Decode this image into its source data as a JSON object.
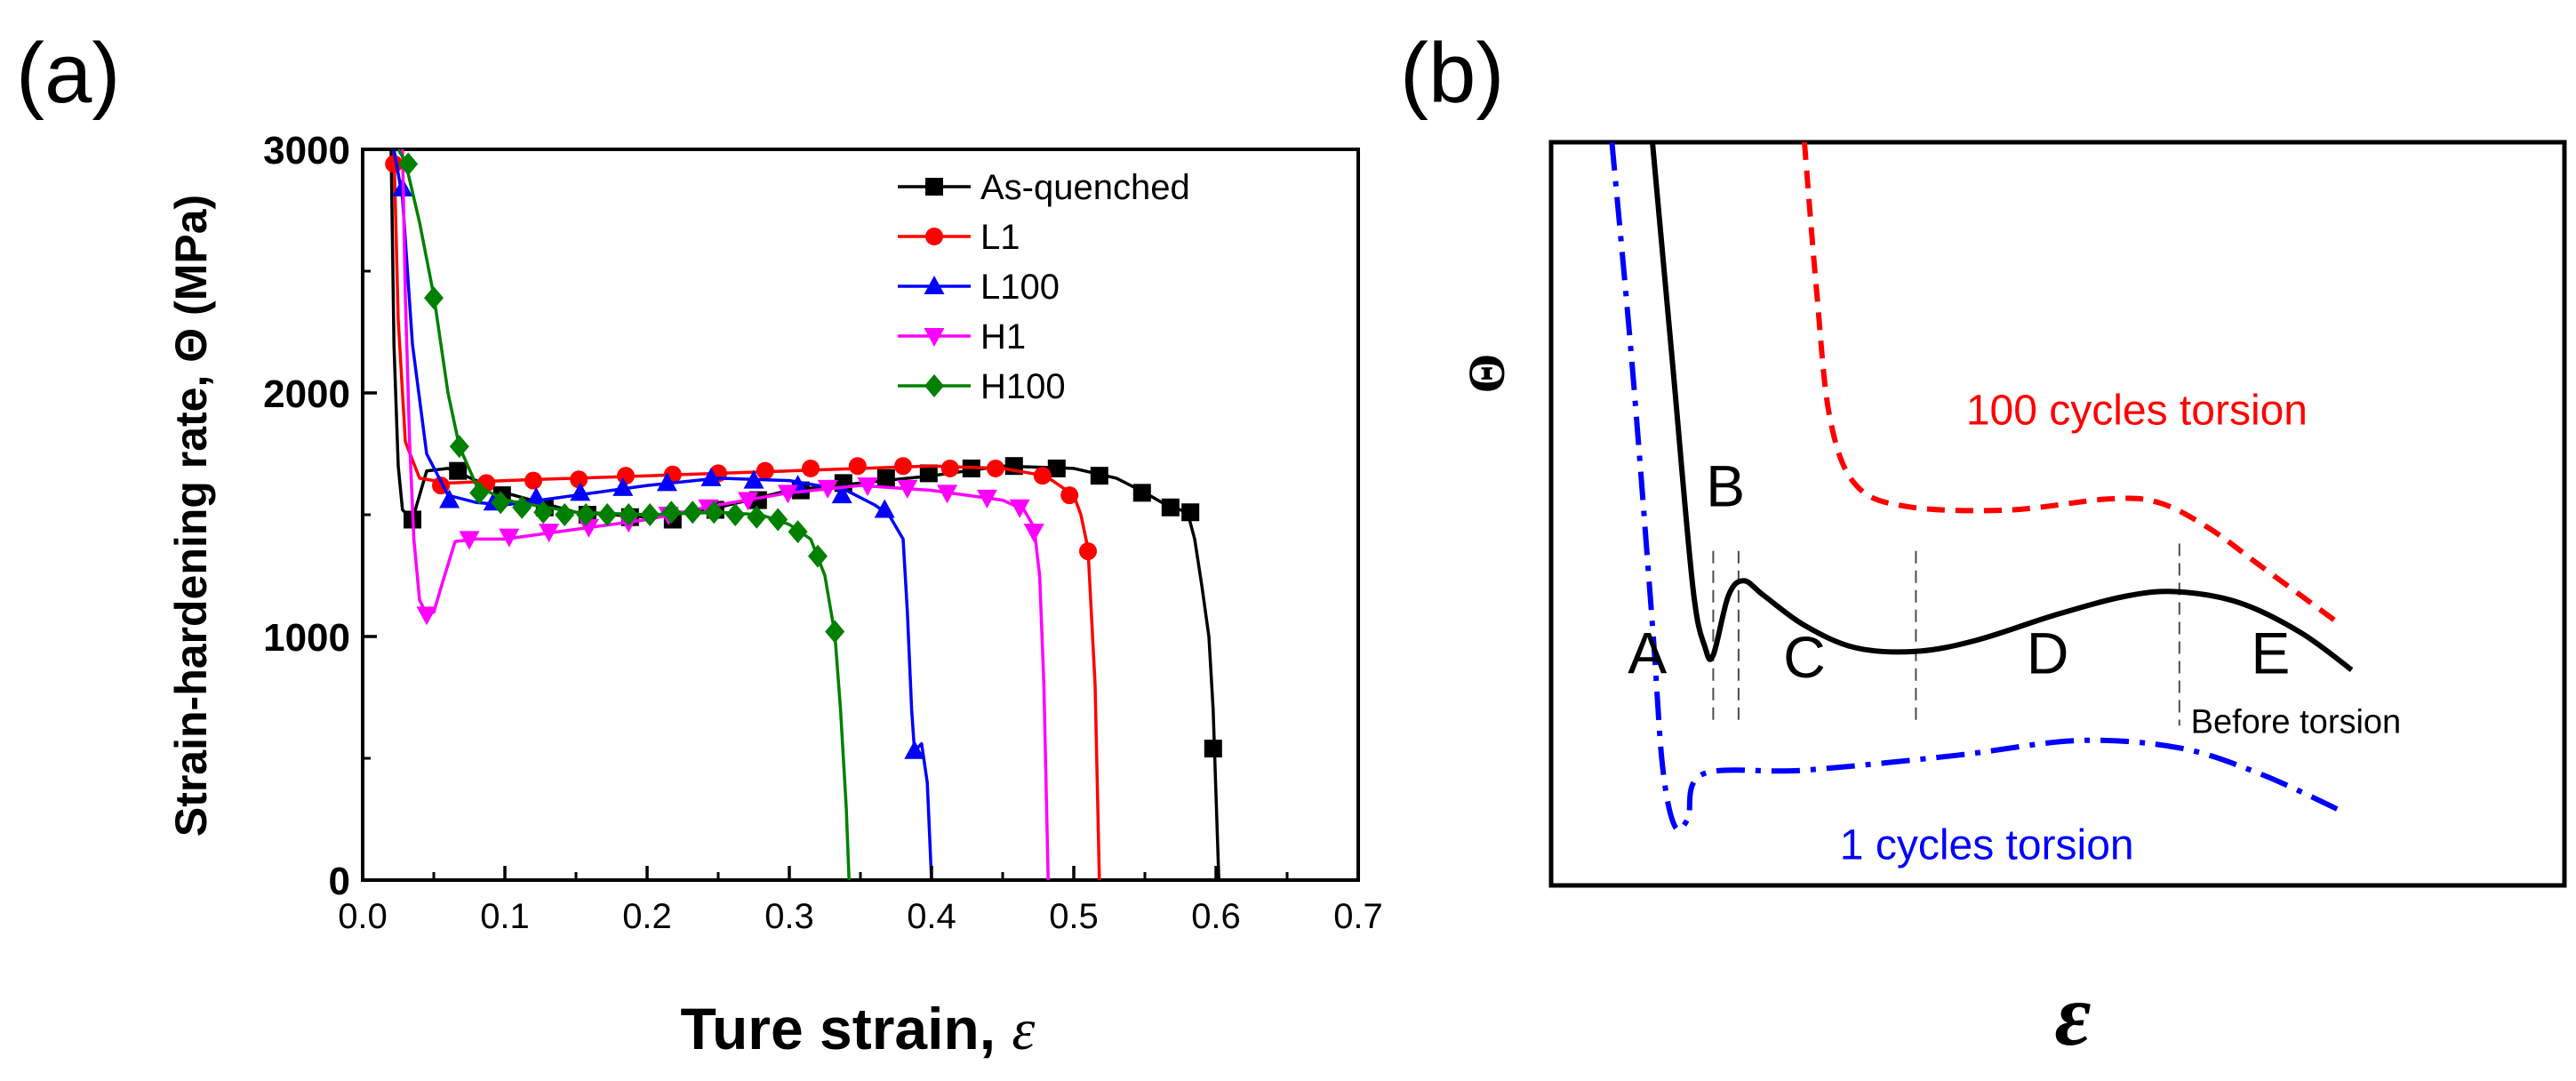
{
  "chart_data": [
    {
      "panel_label": "(a)",
      "type": "line",
      "xlabel": "Ture strain, ",
      "xlabel_symbol": "ε",
      "ylabel": "Strain-hardening rate, Θ (MPa)",
      "xlim": [
        0.0,
        0.7
      ],
      "ylim": [
        0,
        3000
      ],
      "x_ticks": [
        0.0,
        0.1,
        0.2,
        0.3,
        0.4,
        0.5,
        0.6,
        0.7
      ],
      "x_tick_labels": [
        "0.0",
        "0.1",
        "0.2",
        "0.3",
        "0.4",
        "0.5",
        "0.6",
        "0.7"
      ],
      "y_ticks": [
        0,
        1000,
        2000,
        3000
      ],
      "y_tick_labels": [
        "0",
        "1000",
        "2000",
        "3000"
      ],
      "legend_position": "top-right",
      "series": [
        {
          "name": "As-quenched",
          "color": "#000000",
          "marker": "square",
          "line": [
            [
              0.02,
              3000
            ],
            [
              0.022,
              2200
            ],
            [
              0.025,
              1700
            ],
            [
              0.028,
              1520
            ],
            [
              0.035,
              1480
            ],
            [
              0.045,
              1680
            ],
            [
              0.06,
              1690
            ],
            [
              0.1,
              1590
            ],
            [
              0.15,
              1510
            ],
            [
              0.2,
              1490
            ],
            [
              0.25,
              1530
            ],
            [
              0.3,
              1600
            ],
            [
              0.35,
              1630
            ],
            [
              0.4,
              1660
            ],
            [
              0.45,
              1700
            ],
            [
              0.5,
              1690
            ],
            [
              0.53,
              1650
            ],
            [
              0.55,
              1590
            ],
            [
              0.565,
              1540
            ],
            [
              0.58,
              1510
            ],
            [
              0.585,
              1400
            ],
            [
              0.59,
              1210
            ],
            [
              0.595,
              1000
            ],
            [
              0.598,
              700
            ],
            [
              0.6,
              350
            ],
            [
              0.602,
              0
            ]
          ],
          "markers": [
            [
              0.035,
              1480
            ],
            [
              0.067,
              1680
            ],
            [
              0.098,
              1580
            ],
            [
              0.128,
              1530
            ],
            [
              0.158,
              1500
            ],
            [
              0.188,
              1490
            ],
            [
              0.218,
              1480
            ],
            [
              0.248,
              1520
            ],
            [
              0.278,
              1560
            ],
            [
              0.308,
              1600
            ],
            [
              0.338,
              1630
            ],
            [
              0.368,
              1650
            ],
            [
              0.398,
              1670
            ],
            [
              0.428,
              1690
            ],
            [
              0.458,
              1700
            ],
            [
              0.488,
              1690
            ],
            [
              0.518,
              1660
            ],
            [
              0.548,
              1590
            ],
            [
              0.568,
              1530
            ],
            [
              0.582,
              1510
            ],
            [
              0.598,
              540
            ]
          ]
        },
        {
          "name": "L1",
          "color": "#ff0000",
          "marker": "circle",
          "line": [
            [
              0.022,
              3000
            ],
            [
              0.025,
              2300
            ],
            [
              0.03,
              1800
            ],
            [
              0.04,
              1650
            ],
            [
              0.06,
              1630
            ],
            [
              0.1,
              1640
            ],
            [
              0.2,
              1660
            ],
            [
              0.3,
              1680
            ],
            [
              0.4,
              1700
            ],
            [
              0.45,
              1690
            ],
            [
              0.48,
              1660
            ],
            [
              0.5,
              1580
            ],
            [
              0.505,
              1500
            ],
            [
              0.51,
              1360
            ],
            [
              0.515,
              800
            ],
            [
              0.518,
              0
            ]
          ],
          "markers": [
            [
              0.022,
              2940
            ],
            [
              0.055,
              1620
            ],
            [
              0.087,
              1630
            ],
            [
              0.12,
              1640
            ],
            [
              0.152,
              1645
            ],
            [
              0.185,
              1660
            ],
            [
              0.218,
              1665
            ],
            [
              0.25,
              1670
            ],
            [
              0.283,
              1680
            ],
            [
              0.315,
              1690
            ],
            [
              0.348,
              1700
            ],
            [
              0.38,
              1700
            ],
            [
              0.413,
              1690
            ],
            [
              0.445,
              1690
            ],
            [
              0.478,
              1660
            ],
            [
              0.497,
              1580
            ],
            [
              0.51,
              1350
            ]
          ]
        },
        {
          "name": "L100",
          "color": "#0000ff",
          "marker": "triangle-up",
          "line": [
            [
              0.022,
              3000
            ],
            [
              0.028,
              2800
            ],
            [
              0.035,
              2200
            ],
            [
              0.045,
              1750
            ],
            [
              0.06,
              1580
            ],
            [
              0.08,
              1550
            ],
            [
              0.1,
              1540
            ],
            [
              0.15,
              1580
            ],
            [
              0.2,
              1620
            ],
            [
              0.25,
              1650
            ],
            [
              0.3,
              1640
            ],
            [
              0.34,
              1600
            ],
            [
              0.36,
              1540
            ],
            [
              0.37,
              1500
            ],
            [
              0.375,
              1450
            ],
            [
              0.38,
              1400
            ],
            [
              0.383,
              1100
            ],
            [
              0.386,
              700
            ],
            [
              0.388,
              530
            ],
            [
              0.393,
              560
            ],
            [
              0.397,
              400
            ],
            [
              0.4,
              0
            ]
          ],
          "markers": [
            [
              0.028,
              2840
            ],
            [
              0.061,
              1560
            ],
            [
              0.092,
              1550
            ],
            [
              0.122,
              1570
            ],
            [
              0.153,
              1590
            ],
            [
              0.183,
              1610
            ],
            [
              0.214,
              1630
            ],
            [
              0.245,
              1650
            ],
            [
              0.275,
              1640
            ],
            [
              0.306,
              1620
            ],
            [
              0.337,
              1580
            ],
            [
              0.367,
              1520
            ],
            [
              0.388,
              530
            ]
          ]
        },
        {
          "name": "H1",
          "color": "#ff00ff",
          "marker": "triangle-down",
          "line": [
            [
              0.028,
              3000
            ],
            [
              0.03,
              2400
            ],
            [
              0.033,
              1800
            ],
            [
              0.036,
              1400
            ],
            [
              0.04,
              1150
            ],
            [
              0.045,
              1090
            ],
            [
              0.05,
              1100
            ],
            [
              0.055,
              1200
            ],
            [
              0.065,
              1390
            ],
            [
              0.08,
              1400
            ],
            [
              0.1,
              1400
            ],
            [
              0.15,
              1440
            ],
            [
              0.2,
              1480
            ],
            [
              0.25,
              1540
            ],
            [
              0.3,
              1590
            ],
            [
              0.35,
              1620
            ],
            [
              0.4,
              1600
            ],
            [
              0.45,
              1560
            ],
            [
              0.465,
              1520
            ],
            [
              0.472,
              1450
            ],
            [
              0.476,
              1250
            ],
            [
              0.479,
              800
            ],
            [
              0.482,
              0
            ]
          ],
          "markers": [
            [
              0.045,
              1090
            ],
            [
              0.075,
              1400
            ],
            [
              0.103,
              1410
            ],
            [
              0.131,
              1430
            ],
            [
              0.159,
              1450
            ],
            [
              0.187,
              1470
            ],
            [
              0.215,
              1500
            ],
            [
              0.243,
              1530
            ],
            [
              0.271,
              1560
            ],
            [
              0.299,
              1590
            ],
            [
              0.327,
              1610
            ],
            [
              0.355,
              1620
            ],
            [
              0.383,
              1610
            ],
            [
              0.411,
              1590
            ],
            [
              0.439,
              1570
            ],
            [
              0.462,
              1530
            ],
            [
              0.472,
              1430
            ]
          ]
        },
        {
          "name": "H100",
          "color": "#008000",
          "marker": "diamond",
          "line": [
            [
              0.025,
              3000
            ],
            [
              0.03,
              2950
            ],
            [
              0.04,
              2700
            ],
            [
              0.05,
              2400
            ],
            [
              0.06,
              2000
            ],
            [
              0.068,
              1780
            ],
            [
              0.08,
              1620
            ],
            [
              0.1,
              1560
            ],
            [
              0.15,
              1510
            ],
            [
              0.2,
              1500
            ],
            [
              0.25,
              1510
            ],
            [
              0.28,
              1500
            ],
            [
              0.3,
              1460
            ],
            [
              0.315,
              1400
            ],
            [
              0.325,
              1250
            ],
            [
              0.332,
              1010
            ],
            [
              0.336,
              700
            ],
            [
              0.34,
              300
            ],
            [
              0.342,
              0
            ]
          ],
          "markers": [
            [
              0.032,
              2940
            ],
            [
              0.05,
              2390
            ],
            [
              0.068,
              1780
            ],
            [
              0.082,
              1590
            ],
            [
              0.097,
              1550
            ],
            [
              0.112,
              1530
            ],
            [
              0.127,
              1510
            ],
            [
              0.142,
              1500
            ],
            [
              0.157,
              1500
            ],
            [
              0.172,
              1500
            ],
            [
              0.187,
              1500
            ],
            [
              0.202,
              1500
            ],
            [
              0.217,
              1510
            ],
            [
              0.232,
              1510
            ],
            [
              0.247,
              1510
            ],
            [
              0.262,
              1500
            ],
            [
              0.277,
              1490
            ],
            [
              0.292,
              1480
            ],
            [
              0.306,
              1430
            ],
            [
              0.32,
              1330
            ],
            [
              0.332,
              1020
            ]
          ]
        }
      ]
    },
    {
      "panel_label": "(b)",
      "type": "line",
      "schematic": true,
      "xlabel": "ε",
      "ylabel": "Θ",
      "xlim": [
        0,
        10
      ],
      "ylim": [
        0,
        10
      ],
      "stage_labels": [
        "A",
        "B",
        "C",
        "D",
        "E"
      ],
      "stage_boundaries_x": [
        1.6,
        1.85,
        3.6,
        6.2
      ],
      "series": [
        {
          "name": "Before torsion",
          "color": "#000000",
          "style": "solid",
          "points": [
            [
              1.0,
              10.0
            ],
            [
              1.2,
              7.0
            ],
            [
              1.4,
              4.0
            ],
            [
              1.52,
              3.2
            ],
            [
              1.6,
              3.1
            ],
            [
              1.75,
              3.9
            ],
            [
              1.9,
              4.1
            ],
            [
              2.1,
              3.9
            ],
            [
              2.5,
              3.5
            ],
            [
              3.0,
              3.2
            ],
            [
              3.6,
              3.15
            ],
            [
              4.2,
              3.3
            ],
            [
              5.0,
              3.65
            ],
            [
              5.7,
              3.9
            ],
            [
              6.2,
              3.95
            ],
            [
              6.8,
              3.8
            ],
            [
              7.4,
              3.4
            ],
            [
              7.9,
              2.9
            ]
          ]
        },
        {
          "name": "100 cycles torsion",
          "color": "#ff0000",
          "style": "dashed",
          "points": [
            [
              2.5,
              10.0
            ],
            [
              2.62,
              8.0
            ],
            [
              2.75,
              6.3
            ],
            [
              3.0,
              5.4
            ],
            [
              3.5,
              5.1
            ],
            [
              4.5,
              5.05
            ],
            [
              5.5,
              5.2
            ],
            [
              6.0,
              5.15
            ],
            [
              6.5,
              4.8
            ],
            [
              7.0,
              4.3
            ],
            [
              7.8,
              3.5
            ]
          ]
        },
        {
          "name": "1 cycles torsion",
          "color": "#0000ff",
          "style": "dash-dot",
          "points": [
            [
              0.6,
              10.0
            ],
            [
              0.8,
              7.0
            ],
            [
              1.0,
              3.5
            ],
            [
              1.1,
              1.6
            ],
            [
              1.22,
              0.8
            ],
            [
              1.35,
              0.9
            ],
            [
              1.5,
              1.5
            ],
            [
              2.5,
              1.55
            ],
            [
              4.0,
              1.75
            ],
            [
              5.2,
              1.95
            ],
            [
              6.2,
              1.85
            ],
            [
              7.0,
              1.5
            ],
            [
              7.8,
              1.0
            ]
          ]
        }
      ]
    }
  ]
}
